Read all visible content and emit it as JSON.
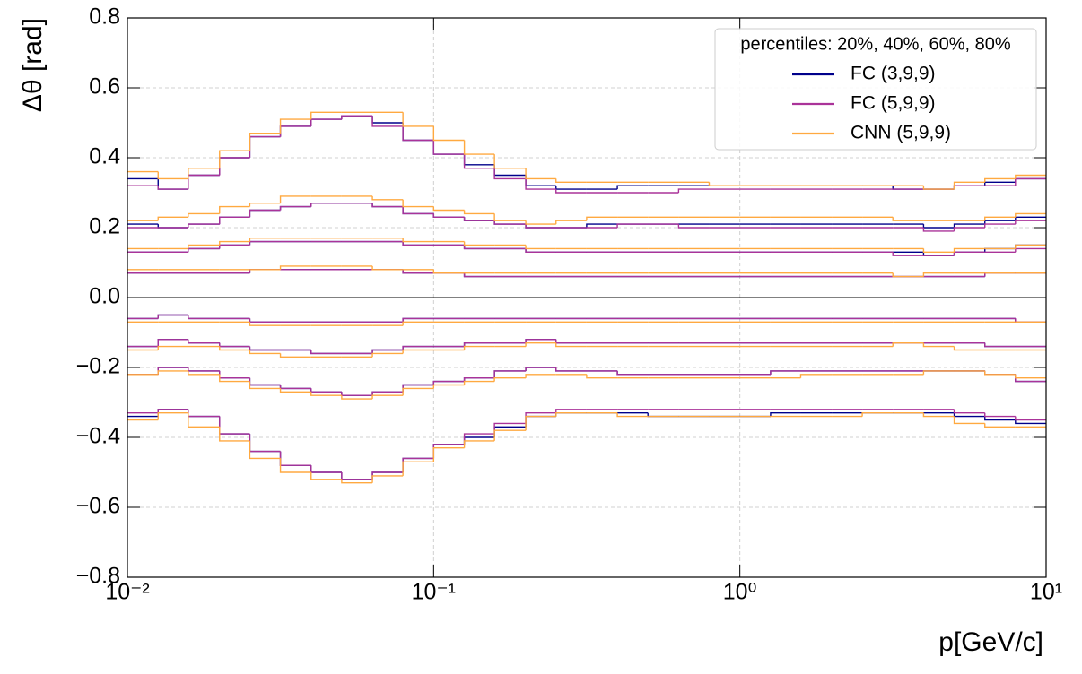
{
  "chart_data": {
    "type": "step",
    "xlabel": "p[GeV/c]",
    "ylabel": "Δθ [rad]",
    "xscale": "log",
    "xlim": [
      0.01,
      10
    ],
    "ylim": [
      -0.8,
      0.8
    ],
    "xticks": [
      {
        "value": 0.01,
        "label": "10⁻²"
      },
      {
        "value": 0.1,
        "label": "10⁻¹"
      },
      {
        "value": 1,
        "label": "10⁰"
      },
      {
        "value": 10,
        "label": "10¹"
      }
    ],
    "yticks": [
      {
        "value": -0.8,
        "label": "−0.8"
      },
      {
        "value": -0.6,
        "label": "−0.6"
      },
      {
        "value": -0.4,
        "label": "−0.4"
      },
      {
        "value": -0.2,
        "label": "−0.2"
      },
      {
        "value": 0,
        "label": "0.0"
      },
      0.2,
      0.4,
      0.6,
      0.8
    ],
    "grid": true,
    "hline": 0,
    "legend_title": "percentiles: 20%, 40%, 60%, 80%",
    "legend_loc": "upper right",
    "bins": [
      0.01,
      0.0126,
      0.0158,
      0.02,
      0.0251,
      0.0316,
      0.0398,
      0.0501,
      0.0631,
      0.0794,
      0.1,
      0.126,
      0.158,
      0.2,
      0.251,
      0.316,
      0.398,
      0.501,
      0.631,
      0.794,
      1,
      1.26,
      1.58,
      2,
      2.51,
      3.16,
      3.98,
      5.01,
      6.31,
      7.94,
      10
    ],
    "series": [
      {
        "name": "FC (3,9,9)",
        "color": "#00008b",
        "values": [
          [
            0.34,
            0.31,
            0.35,
            0.4,
            0.46,
            0.49,
            0.51,
            0.52,
            0.5,
            0.45,
            0.41,
            0.38,
            0.35,
            0.32,
            0.31,
            0.31,
            0.32,
            0.32,
            0.32,
            0.32,
            0.32,
            0.32,
            0.32,
            0.32,
            0.32,
            0.31,
            0.31,
            0.32,
            0.33,
            0.34
          ],
          [
            0.21,
            0.2,
            0.21,
            0.23,
            0.25,
            0.26,
            0.27,
            0.27,
            0.26,
            0.24,
            0.23,
            0.22,
            0.21,
            0.2,
            0.2,
            0.21,
            0.21,
            0.21,
            0.21,
            0.21,
            0.21,
            0.21,
            0.21,
            0.21,
            0.21,
            0.21,
            0.2,
            0.21,
            0.22,
            0.23
          ],
          [
            0.13,
            0.13,
            0.14,
            0.15,
            0.16,
            0.16,
            0.16,
            0.16,
            0.16,
            0.15,
            0.15,
            0.14,
            0.14,
            0.13,
            0.13,
            0.13,
            0.13,
            0.13,
            0.13,
            0.13,
            0.13,
            0.13,
            0.13,
            0.13,
            0.13,
            0.13,
            0.12,
            0.13,
            0.14,
            0.15
          ],
          [
            0.07,
            0.07,
            0.07,
            0.07,
            0.08,
            0.08,
            0.08,
            0.08,
            0.08,
            0.07,
            0.07,
            0.06,
            0.06,
            0.06,
            0.06,
            0.06,
            0.06,
            0.06,
            0.06,
            0.06,
            0.06,
            0.06,
            0.06,
            0.06,
            0.06,
            0.06,
            0.06,
            0.06,
            0.07,
            0.07
          ],
          [
            -0.06,
            -0.05,
            -0.06,
            -0.06,
            -0.07,
            -0.07,
            -0.07,
            -0.07,
            -0.07,
            -0.06,
            -0.06,
            -0.06,
            -0.06,
            -0.06,
            -0.06,
            -0.06,
            -0.06,
            -0.06,
            -0.06,
            -0.06,
            -0.06,
            -0.06,
            -0.06,
            -0.06,
            -0.06,
            -0.06,
            -0.06,
            -0.06,
            -0.06,
            -0.07
          ],
          [
            -0.14,
            -0.12,
            -0.13,
            -0.14,
            -0.15,
            -0.15,
            -0.16,
            -0.16,
            -0.15,
            -0.14,
            -0.14,
            -0.13,
            -0.13,
            -0.12,
            -0.13,
            -0.13,
            -0.13,
            -0.13,
            -0.13,
            -0.13,
            -0.13,
            -0.13,
            -0.13,
            -0.13,
            -0.13,
            -0.13,
            -0.13,
            -0.13,
            -0.14,
            -0.14
          ],
          [
            -0.22,
            -0.2,
            -0.21,
            -0.23,
            -0.25,
            -0.26,
            -0.27,
            -0.28,
            -0.27,
            -0.25,
            -0.24,
            -0.23,
            -0.21,
            -0.2,
            -0.21,
            -0.21,
            -0.22,
            -0.22,
            -0.22,
            -0.22,
            -0.22,
            -0.21,
            -0.21,
            -0.21,
            -0.21,
            -0.21,
            -0.21,
            -0.21,
            -0.22,
            -0.24
          ],
          [
            -0.34,
            -0.32,
            -0.34,
            -0.39,
            -0.44,
            -0.48,
            -0.5,
            -0.52,
            -0.5,
            -0.46,
            -0.42,
            -0.4,
            -0.37,
            -0.34,
            -0.33,
            -0.33,
            -0.33,
            -0.34,
            -0.34,
            -0.34,
            -0.34,
            -0.33,
            -0.33,
            -0.33,
            -0.33,
            -0.33,
            -0.33,
            -0.34,
            -0.35,
            -0.36
          ]
        ]
      },
      {
        "name": "FC (5,9,9)",
        "color": "#aa3399",
        "values": [
          [
            0.32,
            0.31,
            0.35,
            0.4,
            0.46,
            0.49,
            0.51,
            0.52,
            0.49,
            0.45,
            0.41,
            0.37,
            0.34,
            0.31,
            0.3,
            0.3,
            0.3,
            0.3,
            0.31,
            0.31,
            0.31,
            0.31,
            0.31,
            0.31,
            0.31,
            0.31,
            0.31,
            0.32,
            0.32,
            0.34
          ],
          [
            0.2,
            0.2,
            0.21,
            0.23,
            0.25,
            0.26,
            0.27,
            0.27,
            0.26,
            0.24,
            0.23,
            0.22,
            0.21,
            0.2,
            0.2,
            0.2,
            0.21,
            0.21,
            0.2,
            0.2,
            0.2,
            0.2,
            0.2,
            0.2,
            0.2,
            0.2,
            0.19,
            0.2,
            0.21,
            0.22
          ],
          [
            0.13,
            0.13,
            0.14,
            0.15,
            0.16,
            0.16,
            0.16,
            0.16,
            0.16,
            0.15,
            0.15,
            0.14,
            0.14,
            0.13,
            0.13,
            0.13,
            0.13,
            0.13,
            0.13,
            0.13,
            0.13,
            0.13,
            0.13,
            0.13,
            0.13,
            0.12,
            0.12,
            0.13,
            0.13,
            0.14
          ],
          [
            0.07,
            0.07,
            0.07,
            0.07,
            0.08,
            0.08,
            0.08,
            0.08,
            0.08,
            0.07,
            0.07,
            0.06,
            0.06,
            0.06,
            0.06,
            0.06,
            0.06,
            0.06,
            0.06,
            0.06,
            0.06,
            0.06,
            0.06,
            0.06,
            0.06,
            0.06,
            0.06,
            0.06,
            0.07,
            0.07
          ],
          [
            -0.06,
            -0.05,
            -0.06,
            -0.06,
            -0.07,
            -0.07,
            -0.07,
            -0.07,
            -0.07,
            -0.06,
            -0.06,
            -0.06,
            -0.06,
            -0.06,
            -0.06,
            -0.06,
            -0.06,
            -0.06,
            -0.06,
            -0.06,
            -0.06,
            -0.06,
            -0.06,
            -0.06,
            -0.06,
            -0.06,
            -0.06,
            -0.06,
            -0.06,
            -0.07
          ],
          [
            -0.14,
            -0.12,
            -0.13,
            -0.14,
            -0.15,
            -0.15,
            -0.16,
            -0.16,
            -0.15,
            -0.14,
            -0.14,
            -0.13,
            -0.13,
            -0.12,
            -0.13,
            -0.13,
            -0.13,
            -0.13,
            -0.13,
            -0.13,
            -0.13,
            -0.13,
            -0.13,
            -0.13,
            -0.13,
            -0.13,
            -0.13,
            -0.13,
            -0.14,
            -0.14
          ],
          [
            -0.22,
            -0.2,
            -0.21,
            -0.23,
            -0.25,
            -0.26,
            -0.27,
            -0.28,
            -0.27,
            -0.25,
            -0.24,
            -0.23,
            -0.21,
            -0.2,
            -0.21,
            -0.21,
            -0.22,
            -0.22,
            -0.22,
            -0.22,
            -0.22,
            -0.21,
            -0.21,
            -0.21,
            -0.21,
            -0.21,
            -0.21,
            -0.21,
            -0.22,
            -0.24
          ],
          [
            -0.33,
            -0.32,
            -0.34,
            -0.39,
            -0.44,
            -0.48,
            -0.5,
            -0.52,
            -0.5,
            -0.46,
            -0.42,
            -0.39,
            -0.36,
            -0.33,
            -0.32,
            -0.32,
            -0.32,
            -0.32,
            -0.32,
            -0.32,
            -0.32,
            -0.32,
            -0.32,
            -0.32,
            -0.32,
            -0.32,
            -0.32,
            -0.33,
            -0.34,
            -0.35
          ]
        ]
      },
      {
        "name": "CNN (5,9,9)",
        "color": "#ffa940",
        "values": [
          [
            0.36,
            0.34,
            0.37,
            0.42,
            0.47,
            0.51,
            0.53,
            0.53,
            0.53,
            0.49,
            0.45,
            0.41,
            0.37,
            0.34,
            0.33,
            0.33,
            0.33,
            0.33,
            0.33,
            0.32,
            0.32,
            0.32,
            0.32,
            0.32,
            0.32,
            0.32,
            0.31,
            0.33,
            0.34,
            0.35
          ],
          [
            0.22,
            0.23,
            0.24,
            0.26,
            0.27,
            0.29,
            0.29,
            0.29,
            0.28,
            0.26,
            0.25,
            0.24,
            0.22,
            0.21,
            0.22,
            0.23,
            0.23,
            0.23,
            0.23,
            0.23,
            0.23,
            0.23,
            0.23,
            0.23,
            0.23,
            0.22,
            0.22,
            0.22,
            0.23,
            0.24
          ],
          [
            0.14,
            0.14,
            0.15,
            0.16,
            0.17,
            0.17,
            0.17,
            0.17,
            0.17,
            0.16,
            0.16,
            0.15,
            0.15,
            0.14,
            0.14,
            0.14,
            0.14,
            0.14,
            0.14,
            0.14,
            0.14,
            0.14,
            0.14,
            0.14,
            0.14,
            0.14,
            0.13,
            0.14,
            0.14,
            0.15
          ],
          [
            0.08,
            0.08,
            0.08,
            0.08,
            0.08,
            0.09,
            0.09,
            0.09,
            0.08,
            0.08,
            0.07,
            0.07,
            0.07,
            0.07,
            0.07,
            0.07,
            0.07,
            0.07,
            0.07,
            0.07,
            0.07,
            0.07,
            0.07,
            0.07,
            0.07,
            0.06,
            0.07,
            0.07,
            0.07,
            0.07
          ],
          [
            -0.07,
            -0.07,
            -0.07,
            -0.07,
            -0.08,
            -0.08,
            -0.08,
            -0.08,
            -0.08,
            -0.07,
            -0.07,
            -0.07,
            -0.07,
            -0.07,
            -0.07,
            -0.07,
            -0.07,
            -0.07,
            -0.07,
            -0.07,
            -0.07,
            -0.07,
            -0.07,
            -0.07,
            -0.07,
            -0.07,
            -0.07,
            -0.07,
            -0.07,
            -0.07
          ],
          [
            -0.15,
            -0.14,
            -0.14,
            -0.15,
            -0.16,
            -0.17,
            -0.17,
            -0.17,
            -0.16,
            -0.15,
            -0.15,
            -0.14,
            -0.14,
            -0.13,
            -0.14,
            -0.14,
            -0.14,
            -0.14,
            -0.14,
            -0.14,
            -0.14,
            -0.14,
            -0.14,
            -0.14,
            -0.14,
            -0.13,
            -0.14,
            -0.15,
            -0.15,
            -0.15
          ],
          [
            -0.22,
            -0.21,
            -0.22,
            -0.24,
            -0.26,
            -0.27,
            -0.28,
            -0.29,
            -0.28,
            -0.26,
            -0.25,
            -0.24,
            -0.23,
            -0.22,
            -0.22,
            -0.23,
            -0.23,
            -0.23,
            -0.23,
            -0.23,
            -0.23,
            -0.23,
            -0.22,
            -0.22,
            -0.22,
            -0.22,
            -0.21,
            -0.21,
            -0.22,
            -0.23
          ],
          [
            -0.35,
            -0.33,
            -0.37,
            -0.41,
            -0.46,
            -0.5,
            -0.52,
            -0.53,
            -0.51,
            -0.47,
            -0.43,
            -0.41,
            -0.38,
            -0.34,
            -0.33,
            -0.33,
            -0.34,
            -0.34,
            -0.34,
            -0.34,
            -0.34,
            -0.34,
            -0.34,
            -0.34,
            -0.33,
            -0.33,
            -0.34,
            -0.36,
            -0.37,
            -0.37
          ]
        ]
      }
    ]
  }
}
